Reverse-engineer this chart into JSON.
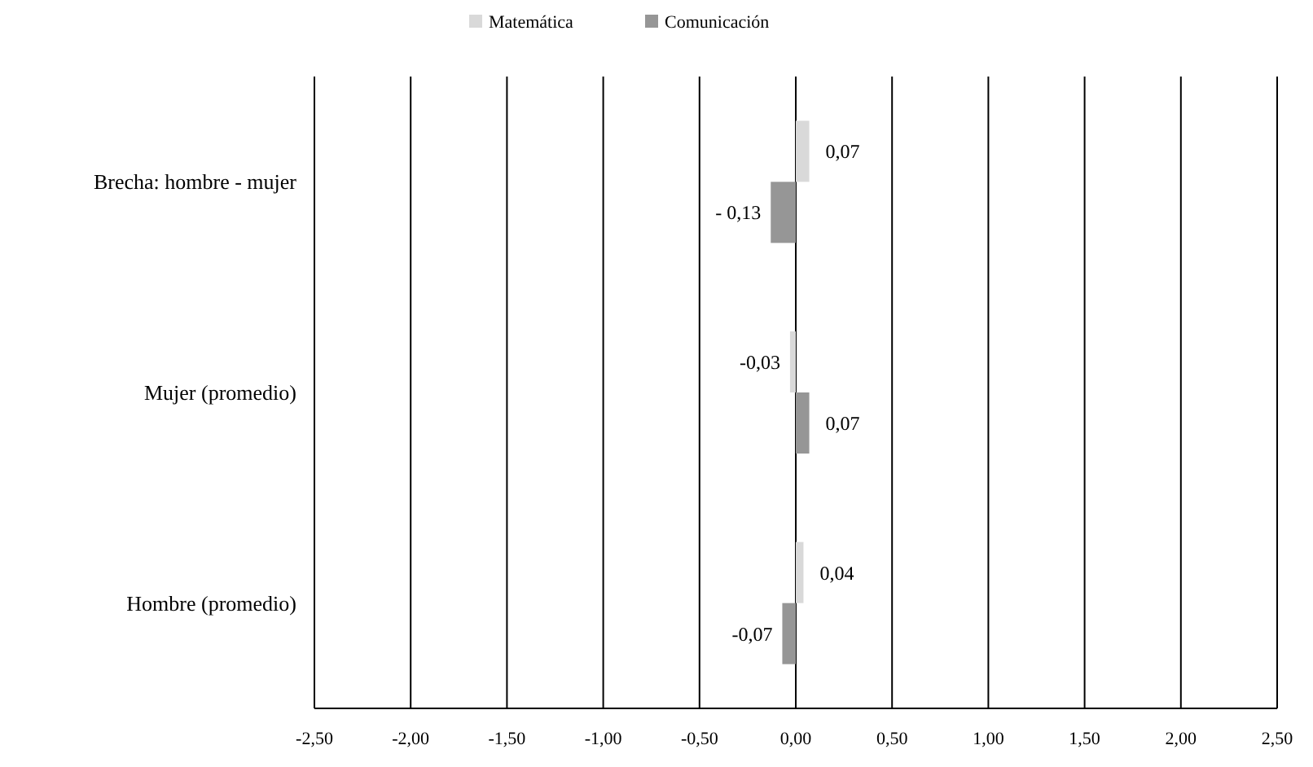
{
  "chart_data": {
    "type": "bar",
    "orientation": "horizontal",
    "categories": [
      "Brecha: hombre - mujer",
      "Mujer (promedio)",
      "Hombre (promedio)"
    ],
    "series": [
      {
        "name": "Matemática",
        "color": "#d9d9d9",
        "values": [
          0.07,
          -0.03,
          0.04
        ],
        "value_labels": [
          "0,07",
          "-0,03",
          "0,04"
        ]
      },
      {
        "name": "Comunicación",
        "color": "#969696",
        "values": [
          -0.13,
          0.07,
          -0.07
        ],
        "value_labels": [
          "- 0,13",
          "0,07",
          "-0,07"
        ]
      }
    ],
    "xlim": [
      -2.5,
      2.5
    ],
    "xticks": [
      {
        "value": -2.5,
        "label": "-2,50"
      },
      {
        "value": -2,
        "label": "-2,00"
      },
      {
        "value": -1.5,
        "label": "-1,50"
      },
      {
        "value": -1,
        "label": "-1,00"
      },
      {
        "value": -0.5,
        "label": "-0,50"
      },
      {
        "value": 0,
        "label": "0,00"
      },
      {
        "value": 0.5,
        "label": "0,50"
      },
      {
        "value": 1,
        "label": "1,00"
      },
      {
        "value": 1.5,
        "label": "1,50"
      },
      {
        "value": 2,
        "label": "2,00"
      },
      {
        "value": 2.5,
        "label": "2,50"
      }
    ],
    "grid": "x",
    "legend": "top"
  }
}
